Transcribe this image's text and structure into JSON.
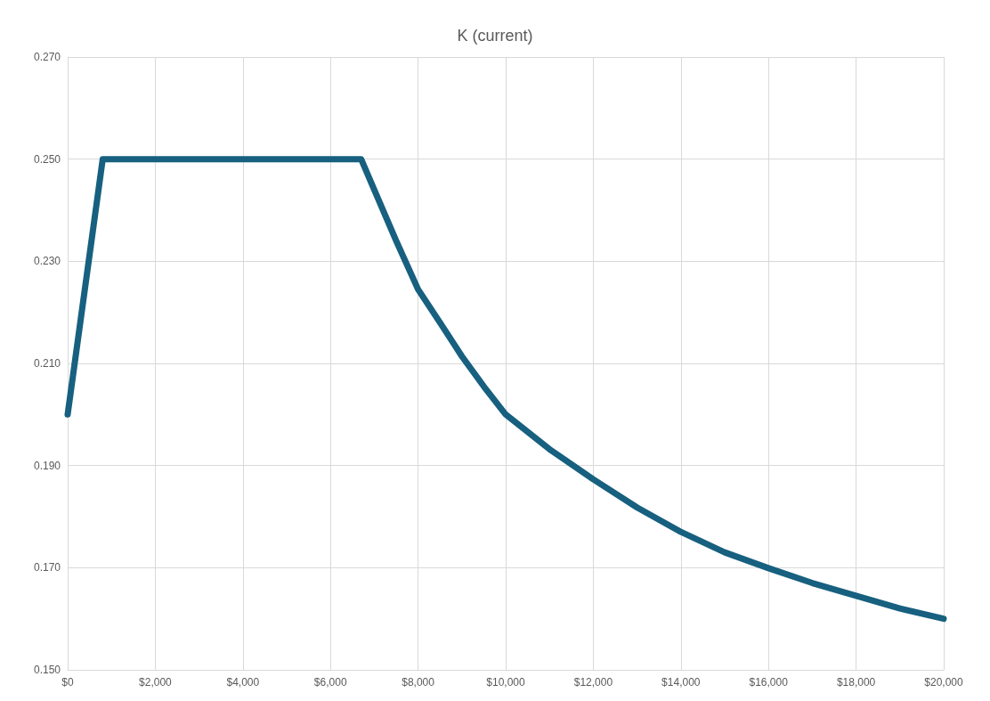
{
  "chart_data": {
    "type": "line",
    "title": "K (current)",
    "x": [
      0,
      800,
      6700,
      7000,
      7500,
      8000,
      8500,
      9000,
      9500,
      10000,
      11000,
      12000,
      13000,
      14000,
      15000,
      16000,
      17000,
      18000,
      19000,
      20000
    ],
    "series": [
      {
        "color": "#17607f",
        "values": [
          0.2,
          0.25,
          0.25,
          0.244,
          0.234,
          0.2245,
          0.218,
          0.2114,
          0.2055,
          0.2,
          0.1932,
          0.1873,
          0.1818,
          0.177,
          0.173,
          0.1699,
          0.167,
          0.1645,
          0.162,
          0.16
        ]
      }
    ],
    "xlim": [
      0,
      20000
    ],
    "xticks": [
      {
        "value": 0,
        "label": "$0"
      },
      {
        "value": 2000,
        "label": "$2,000"
      },
      {
        "value": 4000,
        "label": "$4,000"
      },
      {
        "value": 6000,
        "label": "$6,000"
      },
      {
        "value": 8000,
        "label": "$8,000"
      },
      {
        "value": 10000,
        "label": "$10,000"
      },
      {
        "value": 12000,
        "label": "$12,000"
      },
      {
        "value": 14000,
        "label": "$14,000"
      },
      {
        "value": 16000,
        "label": "$16,000"
      },
      {
        "value": 18000,
        "label": "$18,000"
      },
      {
        "value": 20000,
        "label": "$20,000"
      }
    ],
    "ylim": [
      0.15,
      0.27
    ],
    "yticks": [
      {
        "value": 0.15,
        "label": "0.150"
      },
      {
        "value": 0.17,
        "label": "0.170"
      },
      {
        "value": 0.19,
        "label": "0.190"
      },
      {
        "value": 0.21,
        "label": "0.210"
      },
      {
        "value": 0.23,
        "label": "0.230"
      },
      {
        "value": 0.25,
        "label": "0.250"
      },
      {
        "value": 0.27,
        "label": "0.270"
      }
    ],
    "grid": true,
    "marker": "none",
    "line_style": "solid"
  }
}
